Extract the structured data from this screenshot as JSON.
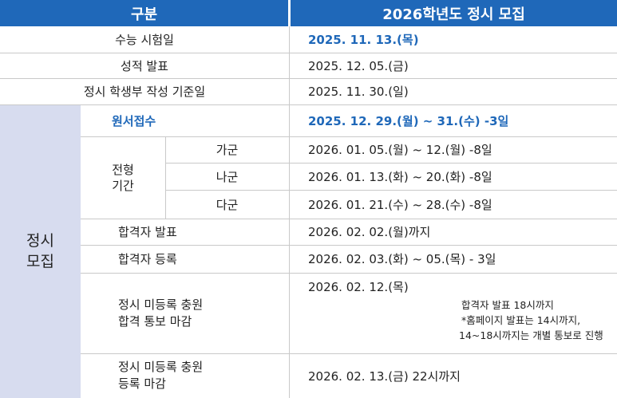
{
  "colors": {
    "header": "#1f68b9",
    "accent": "#1f68b9",
    "sidebar": "#d7dcef",
    "grid": "#c9c9c9"
  },
  "header": {
    "category": "구분",
    "title": "2026학년도 정시 모집"
  },
  "top_rows": [
    {
      "label": "수능 시험일",
      "value": "2025. 11. 13.(목)"
    },
    {
      "label": "성적 발표",
      "value": "2025. 12. 05.(금)"
    },
    {
      "label": "정시 학생부 작성 기준일",
      "value": "2025. 11. 30.(일)"
    }
  ],
  "group_label": "정시\n모집",
  "rows": {
    "apply": {
      "label": "원서접수",
      "value": "2025. 12. 29.(월) ~ 31.(수) -3일"
    },
    "period_label": "전형\n기간",
    "periods": [
      {
        "sub": "가군",
        "value": "2026. 01. 05.(월) ~ 12.(월) -8일"
      },
      {
        "sub": "나군",
        "value": "2026. 01. 13.(화) ~  20.(화) -8일"
      },
      {
        "sub": "다군",
        "value": "2026. 01.  21.(수) ~  28.(수) -8일"
      }
    ],
    "announce": {
      "label": "합격자 발표",
      "value": "2026. 02. 02.(월)까지"
    },
    "register": {
      "label": "합격자 등록",
      "value": "2026. 02. 03.(화) ~  05.(목) - 3일"
    },
    "notify": {
      "label": "정시 미등록 충원\n합격 통보 마감",
      "value": "2026. 02.  12.(목)",
      "note1": "합격자 발표 18시까지",
      "note2": "*홈페이지 발표는 14시까지,",
      "note3": "14~18시까지는 개별 통보로 진행"
    },
    "final": {
      "label": "정시 미등록 충원\n등록 마감",
      "value": "2026. 02.  13.(금) 22시까지"
    }
  }
}
